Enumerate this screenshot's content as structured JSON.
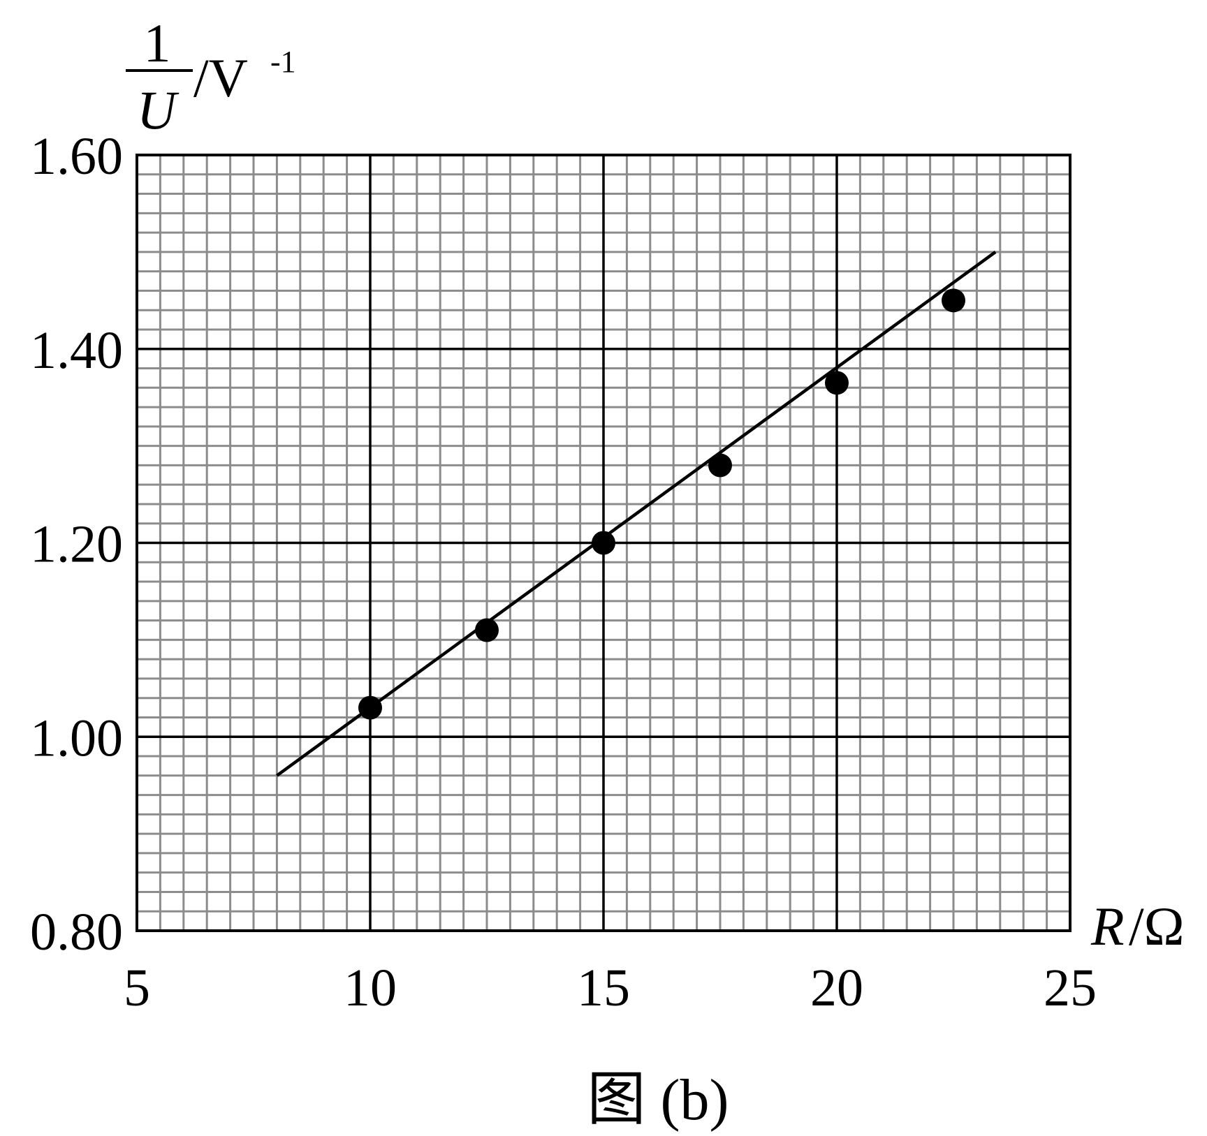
{
  "chart_data": {
    "type": "scatter",
    "title": "",
    "caption": "图 (b)",
    "xlabel": {
      "var": "R",
      "unit": "/Ω"
    },
    "ylabel": {
      "numerator": "1",
      "denominator": "U",
      "unit": "/V",
      "unit_exp": "-1"
    },
    "xlim": [
      5,
      25
    ],
    "ylim": [
      0.8,
      1.6
    ],
    "x_ticks": [
      5,
      10,
      15,
      20,
      25
    ],
    "x_tick_labels": [
      "5",
      "10",
      "15",
      "20",
      "25"
    ],
    "y_ticks": [
      0.8,
      1.0,
      1.2,
      1.4,
      1.6
    ],
    "y_tick_labels": [
      "0.80",
      "1.00",
      "1.20",
      "1.40",
      "1.60"
    ],
    "grid": true,
    "grid_minor_step": {
      "x": 0.5,
      "y": 0.02
    },
    "points": [
      {
        "x": 10.0,
        "y": 1.03
      },
      {
        "x": 12.5,
        "y": 1.11
      },
      {
        "x": 15.0,
        "y": 1.2
      },
      {
        "x": 17.5,
        "y": 1.28
      },
      {
        "x": 20.0,
        "y": 1.365
      },
      {
        "x": 22.5,
        "y": 1.45
      }
    ],
    "fit_line": {
      "x": [
        8.0,
        23.4
      ],
      "y": [
        0.96,
        1.5
      ]
    },
    "colors": {
      "grid_minor": "#8c8c8c",
      "grid_major": "#000000",
      "marks": "#000000"
    }
  }
}
